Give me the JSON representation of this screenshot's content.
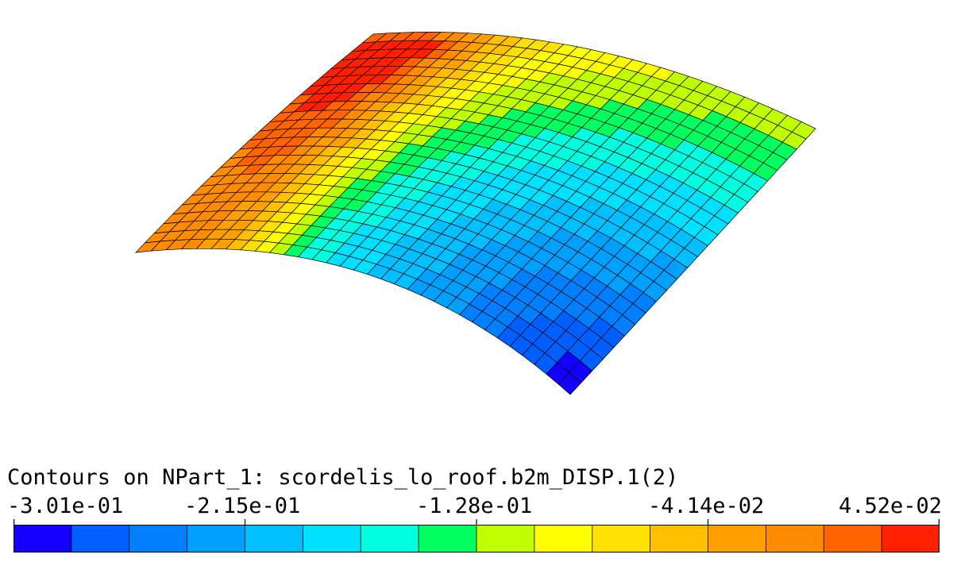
{
  "title": "Contours on NPart_1: scordelis_lo_roof.b2m_DISP.1(2)",
  "colorbar": {
    "tick_labels": [
      "-3.01e-01",
      "-2.15e-01",
      "-1.28e-01",
      "-4.14e-02",
      "4.52e-02"
    ],
    "colors": [
      "#1400ff",
      "#0060ff",
      "#0080ff",
      "#00a0ff",
      "#00c0ff",
      "#00e0ff",
      "#00ffe0",
      "#00ff60",
      "#c0ff00",
      "#ffff00",
      "#ffe000",
      "#ffc000",
      "#ffa000",
      "#ff8c00",
      "#ff6400",
      "#ff2000"
    ]
  },
  "mesh": {
    "field": "DISP.1(2)",
    "min": -0.301,
    "max": 0.0452
  }
}
